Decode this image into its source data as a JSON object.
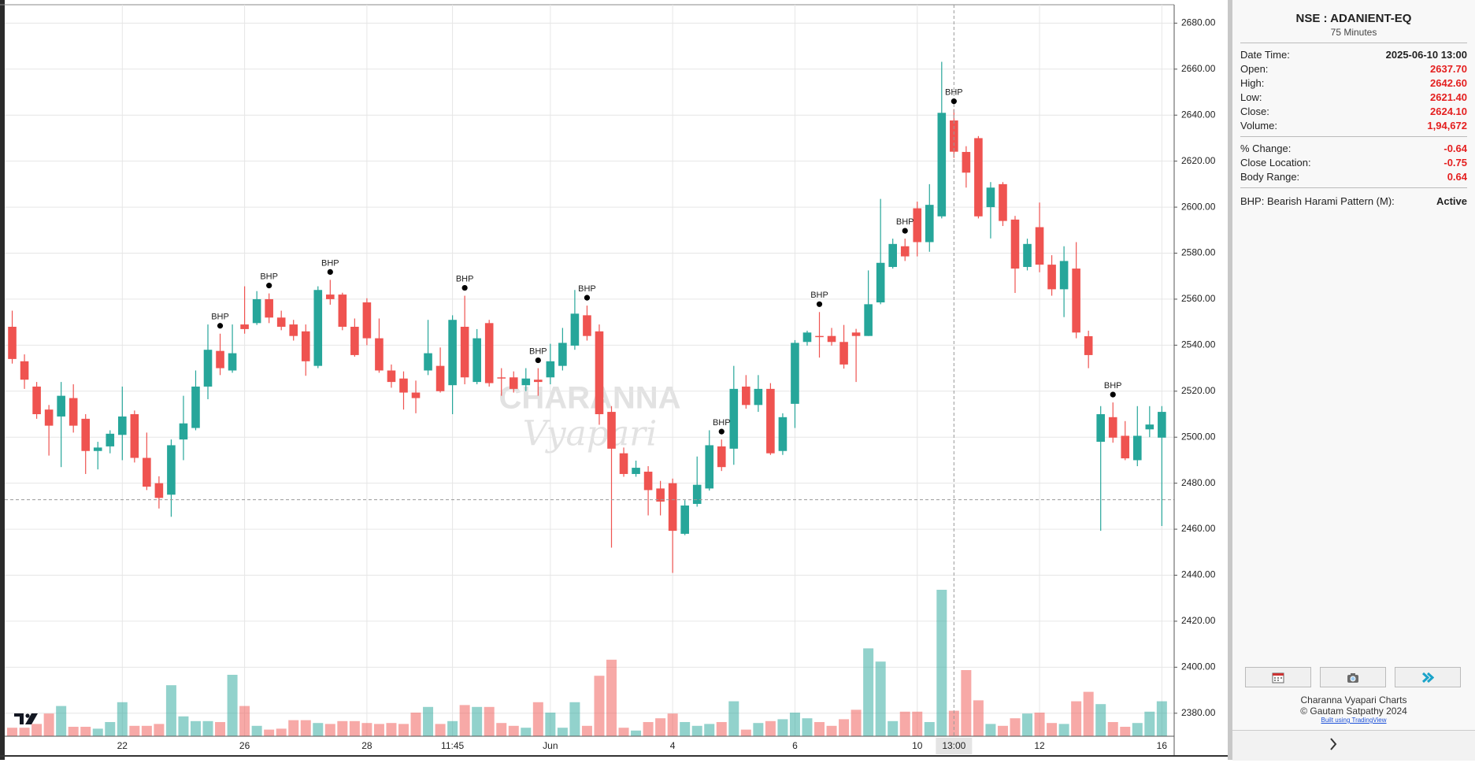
{
  "chart_data": {
    "type": "candlestick",
    "up_color": "#26a69a",
    "down_color": "#ef5350",
    "ylim": [
      2370,
      2688
    ],
    "yticks": [
      {
        "value": 2380,
        "label": "2380.00"
      },
      {
        "value": 2400,
        "label": "2400.00"
      },
      {
        "value": 2420,
        "label": "2420.00"
      },
      {
        "value": 2440,
        "label": "2440.00"
      },
      {
        "value": 2460,
        "label": "2460.00"
      },
      {
        "value": 2480,
        "label": "2480.00"
      },
      {
        "value": 2500,
        "label": "2500.00"
      },
      {
        "value": 2520,
        "label": "2520.00"
      },
      {
        "value": 2540,
        "label": "2540.00"
      },
      {
        "value": 2560,
        "label": "2560.00"
      },
      {
        "value": 2580,
        "label": "2580.00"
      },
      {
        "value": 2600,
        "label": "2600.00"
      },
      {
        "value": 2620,
        "label": "2620.00"
      },
      {
        "value": 2640,
        "label": "2640.00"
      },
      {
        "value": 2660,
        "label": "2660.00"
      },
      {
        "value": 2680,
        "label": "2680.00"
      }
    ],
    "grid": true,
    "categories": [
      null,
      null,
      null,
      null,
      null,
      null,
      null,
      null,
      null,
      "22",
      null,
      null,
      null,
      null,
      null,
      null,
      null,
      null,
      null,
      "26",
      null,
      null,
      null,
      null,
      null,
      null,
      null,
      null,
      null,
      "28",
      null,
      null,
      null,
      null,
      null,
      null,
      "11:45",
      null,
      null,
      null,
      null,
      null,
      null,
      null,
      "Jun",
      null,
      null,
      null,
      null,
      null,
      null,
      null,
      null,
      null,
      "4",
      null,
      null,
      null,
      null,
      null,
      null,
      null,
      null,
      null,
      "6",
      null,
      null,
      null,
      null,
      null,
      null,
      null,
      null,
      null,
      "10",
      null,
      null,
      null,
      null,
      null,
      null,
      null,
      null,
      null,
      "12",
      null,
      null,
      null,
      null,
      null,
      null,
      null,
      null,
      null,
      "16"
    ],
    "open": [
      2548,
      2533,
      2522,
      2512,
      2509,
      2517,
      2508,
      2494,
      2496,
      2501,
      2510,
      2491,
      2480,
      2475,
      2499,
      2504,
      2522,
      2537.5,
      2529,
      2549,
      2549.6,
      2560,
      2552,
      2549,
      2546,
      2531,
      2562,
      2562,
      2548,
      2558.6,
      2543,
      2529,
      2525.5,
      2519.4,
      2529,
      2531,
      2522.6,
      2548,
      2524,
      2549.6,
      2526,
      2526,
      2522.6,
      2525,
      2526,
      2531,
      2539.8,
      2553,
      2546,
      2511,
      2493,
      2484,
      2485,
      2477.7,
      2480,
      2458,
      2471,
      2477.7,
      2496,
      2495,
      2522,
      2514,
      2521,
      2494,
      2514.5,
      2541.4,
      2544,
      2544,
      2541.4,
      2545.5,
      2544,
      2558.6,
      2574,
      2583,
      2599.5,
      2584.8,
      2596,
      2637.7,
      2624,
      2630,
      2600,
      2610,
      2594.6,
      2574,
      2591.3,
      2575,
      2564.3,
      2573.3,
      2543.9,
      2498,
      2508.7,
      2500.6,
      2490,
      2503.4,
      2499.8
    ],
    "high": [
      2555,
      2536,
      2524,
      2514,
      2524,
      2523,
      2510,
      2498,
      2503,
      2522,
      2511.6,
      2502,
      2483,
      2499,
      2518,
      2529,
      2549,
      2545,
      2549,
      2565.6,
      2563.5,
      2562.5,
      2555,
      2551,
      2549,
      2565.6,
      2568.4,
      2562.8,
      2551.6,
      2560.4,
      2551.6,
      2531.6,
      2528.6,
      2524.6,
      2551,
      2539,
      2553,
      2561.5,
      2547,
      2551,
      2530,
      2528.6,
      2530,
      2530,
      2540.6,
      2547.5,
      2564,
      2557.2,
      2549,
      2513.5,
      2495.5,
      2489.8,
      2487.4,
      2481,
      2482,
      2472.6,
      2491.6,
      2503,
      2499,
      2531,
      2527,
      2527,
      2523.5,
      2510.4,
      2542.2,
      2546.3,
      2554.4,
      2547.5,
      2548.8,
      2547.1,
      2572.5,
      2603.6,
      2586.3,
      2586.3,
      2602.4,
      2610,
      2663.2,
      2642.6,
      2626.5,
      2630.9,
      2610.9,
      2610.9,
      2596.2,
      2586.3,
      2602,
      2579.1,
      2583,
      2584.8,
      2546.3,
      2513.5,
      2515.1,
      2507,
      2513.5,
      2513.5,
      2513.5
    ],
    "low": [
      2532,
      2521,
      2508,
      2492,
      2487,
      2502,
      2484,
      2486,
      2493,
      2490,
      2489,
      2477,
      2469,
      2465.4,
      2490,
      2503,
      2516.5,
      2527,
      2528,
      2545,
      2548.8,
      2549.6,
      2546.5,
      2542,
      2526.7,
      2530,
      2557.6,
      2546.5,
      2535,
      2540,
      2528,
      2521.5,
      2512,
      2510.4,
      2527,
      2519.4,
      2510,
      2523,
      2523,
      2522,
      2518,
      2519.4,
      2520,
      2518,
      2523,
      2529,
      2538,
      2542,
      2505.4,
      2452,
      2482.8,
      2482.8,
      2466,
      2466,
      2441,
      2457.4,
      2469.8,
      2476.8,
      2485.3,
      2488,
      2512.4,
      2511,
      2492.3,
      2492.3,
      2504,
      2539.8,
      2534.6,
      2539.8,
      2529.8,
      2524,
      2544,
      2557.8,
      2573.3,
      2576.6,
      2578.6,
      2580.6,
      2595.1,
      2621.4,
      2608.5,
      2595.1,
      2586.4,
      2591.8,
      2562.7,
      2572.5,
      2571.7,
      2561.5,
      2552.2,
      2543,
      2530,
      2459.3,
      2497.6,
      2490,
      2487.4,
      2500,
      2461.4
    ],
    "close": [
      2534,
      2525,
      2510,
      2505,
      2518,
      2505,
      2494,
      2495.5,
      2501.5,
      2509,
      2491,
      2478.5,
      2473.6,
      2496.5,
      2506,
      2522,
      2538,
      2530,
      2536.5,
      2547,
      2560,
      2552,
      2548,
      2544,
      2533,
      2564,
      2560,
      2548,
      2535.7,
      2543,
      2529,
      2524,
      2519.4,
      2517,
      2536.5,
      2520,
      2551,
      2526,
      2543,
      2523.5,
      2525.5,
      2521,
      2525.5,
      2524,
      2533,
      2541,
      2553.7,
      2544,
      2510,
      2495,
      2484,
      2486.7,
      2477,
      2472,
      2459.3,
      2470.3,
      2479.3,
      2496.5,
      2487,
      2521,
      2514,
      2521,
      2493,
      2508.7,
      2541,
      2545.5,
      2543.5,
      2541.4,
      2531.6,
      2544,
      2557.8,
      2575.8,
      2584,
      2578.6,
      2584.8,
      2601,
      2641,
      2624.1,
      2615,
      2596,
      2608.5,
      2594,
      2573.3,
      2584,
      2575,
      2564.3,
      2576.6,
      2545.5,
      2535.7,
      2510,
      2499.8,
      2490.8,
      2500.6,
      2505.5,
      2511
    ],
    "volumes": [
      64900,
      64900,
      93700,
      173000,
      230700,
      72100,
      72100,
      57700,
      108200,
      259600,
      79300,
      79300,
      93700,
      389300,
      151400,
      115400,
      115400,
      108200,
      468700,
      230700,
      79300,
      50500,
      57700,
      122600,
      122600,
      100900,
      93700,
      115400,
      115400,
      100900,
      93700,
      100900,
      93700,
      180200,
      223500,
      93700,
      115400,
      237900,
      223500,
      223500,
      100900,
      79300,
      64900,
      259600,
      180200,
      64900,
      259600,
      79300,
      461400,
      584000,
      64900,
      43300,
      108200,
      137000,
      173000,
      108200,
      79300,
      93700,
      108200,
      266800,
      50500,
      100900,
      115400,
      129800,
      180200,
      137000,
      108200,
      79300,
      129800,
      201900,
      670500,
      569600,
      115400,
      187500,
      187500,
      108200,
      1117600,
      194672,
      504700,
      274000,
      93700,
      79300,
      137000,
      173000,
      180200,
      100900,
      93700,
      266800,
      338900,
      245100,
      108200,
      72100,
      100900,
      187500,
      266800
    ],
    "annotations": {
      "label": "BHP",
      "indices": [
        17,
        21,
        26,
        37,
        43,
        47,
        58,
        66,
        73,
        77,
        90
      ]
    },
    "crosshair": {
      "index": 77,
      "label": "13:00",
      "price": 2472.8
    },
    "watermark": [
      "CHARANNA",
      "Vyapari"
    ]
  },
  "panel": {
    "title": "NSE : ADANIENT-EQ",
    "subtitle": "75 Minutes",
    "sections": [
      [
        {
          "label": "Date Time:",
          "value": "2025-06-10 13:00"
        },
        {
          "label": "Open:",
          "value": "2637.70"
        },
        {
          "label": "High:",
          "value": "2642.60"
        },
        {
          "label": "Low:",
          "value": "2621.40"
        },
        {
          "label": "Close:",
          "value": "2624.10"
        },
        {
          "label": "Volume:",
          "value": "1,94,672"
        }
      ],
      [
        {
          "label": "% Change:",
          "value": "-0.64"
        },
        {
          "label": "Close Location:",
          "value": "-0.75"
        },
        {
          "label": "Body Range:",
          "value": "0.64"
        }
      ],
      [
        {
          "label": "BHP: Bearish Harami Pattern (M):",
          "value": "Active"
        }
      ]
    ],
    "footer": [
      "Charanna Vyapari Charts",
      "© Gautam Satpathy 2024",
      "Built using TradingView"
    ]
  }
}
